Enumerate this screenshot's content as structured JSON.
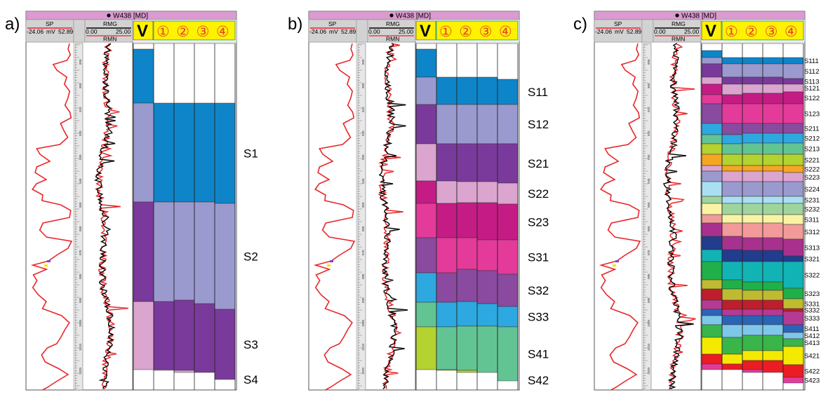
{
  "well": {
    "title": "W438 [MD]",
    "sp": {
      "name": "SP",
      "min": "-24.06",
      "unit": "mV",
      "max": "52.89"
    },
    "rmg": {
      "name": "RMG",
      "min": "0.00",
      "max": "25.00"
    },
    "rmn": {
      "name": "RMN"
    },
    "depth_ticks": [
      "890",
      "900",
      "910",
      "920",
      "930",
      "940",
      "950",
      "960",
      "970",
      "980",
      "990",
      "1000",
      "1010",
      "1020"
    ]
  },
  "columns": {
    "v_label": "V",
    "circled": [
      "①",
      "②",
      "③",
      "④"
    ]
  },
  "panels": [
    {
      "letter": "a)",
      "zones": [
        {
          "label": "S1",
          "color": "#0e85c9",
          "b": [
            70,
            147,
            147,
            147,
            147
          ]
        },
        {
          "label": "S2",
          "color": "#9b9acf",
          "b": [
            147,
            288,
            288,
            288,
            290
          ]
        },
        {
          "label": "S3",
          "color": "#7a3a9b",
          "b": [
            288,
            430,
            428,
            433,
            441
          ]
        },
        {
          "label": "S4",
          "color": "#dba5cf",
          "b": [
            430,
            527,
            528,
            531,
            541
          ]
        }
      ]
    },
    {
      "letter": "b)",
      "zones": [
        {
          "label": "S11",
          "color": "#0e85c9",
          "b": [
            70,
            110,
            110,
            110,
            113
          ]
        },
        {
          "label": "S12",
          "color": "#9b9acf",
          "b": [
            110,
            149,
            149,
            149,
            149
          ]
        },
        {
          "label": "S21",
          "color": "#7a3a9b",
          "b": [
            149,
            205,
            205,
            205,
            205
          ]
        },
        {
          "label": "S22",
          "color": "#dba5cf",
          "b": [
            205,
            258,
            259,
            259,
            261
          ]
        },
        {
          "label": "S23",
          "color": "#c41c84",
          "b": [
            258,
            290,
            289,
            289,
            291
          ]
        },
        {
          "label": "S31",
          "color": "#e43a9a",
          "b": [
            290,
            339,
            339,
            342,
            342
          ]
        },
        {
          "label": "S32",
          "color": "#8a4a9f",
          "b": [
            339,
            389,
            384,
            386,
            391
          ]
        },
        {
          "label": "S33",
          "color": "#2da8e0",
          "b": [
            389,
            431,
            430,
            433,
            437
          ]
        },
        {
          "label": "S41",
          "color": "#63c493",
          "b": [
            431,
            466,
            465,
            465,
            466
          ]
        },
        {
          "label": "S42",
          "color": "#b4d230",
          "b": [
            466,
            527,
            528,
            531,
            543
          ]
        }
      ]
    },
    {
      "letter": "c)",
      "zones": [
        {
          "label": "S111",
          "color": "#0e85c9",
          "b": [
            72,
            82,
            82,
            82,
            82
          ]
        },
        {
          "label": "S112",
          "color": "#9b9acf",
          "b": [
            82,
            91,
            91,
            91,
            91
          ]
        },
        {
          "label": "S113",
          "color": "#7a3a9b",
          "b": [
            91,
            110,
            110,
            110,
            112
          ]
        },
        {
          "label": "S121",
          "color": "#dba5cf",
          "b": [
            110,
            120,
            120,
            120,
            120
          ]
        },
        {
          "label": "S122",
          "color": "#c41c84",
          "b": [
            120,
            135,
            133,
            133,
            131
          ]
        },
        {
          "label": "S123",
          "color": "#e43a9a",
          "b": [
            135,
            148,
            148,
            148,
            148
          ]
        },
        {
          "label": "S211",
          "color": "#8a4a9f",
          "b": [
            148,
            176,
            176,
            176,
            176
          ]
        },
        {
          "label": "S212",
          "color": "#2da8e0",
          "b": [
            176,
            192,
            190,
            190,
            190
          ]
        },
        {
          "label": "S213",
          "color": "#63c493",
          "b": [
            192,
            205,
            204,
            204,
            204
          ]
        },
        {
          "label": "S221",
          "color": "#b4d230",
          "b": [
            205,
            220,
            220,
            220,
            220
          ]
        },
        {
          "label": "S222",
          "color": "#f6a623",
          "b": [
            220,
            236,
            236,
            236,
            236
          ]
        },
        {
          "label": "S223",
          "color": "#dba5cf",
          "b": [
            236,
            244,
            244,
            244,
            246
          ]
        },
        {
          "label": "S224",
          "color": "#9b9acf",
          "b": [
            244,
            259,
            259,
            259,
            259
          ]
        },
        {
          "label": "S231",
          "color": "#a9dff1",
          "b": [
            259,
            280,
            280,
            280,
            280
          ]
        },
        {
          "label": "S232",
          "color": "#9fd59d",
          "b": [
            280,
            290,
            290,
            290,
            290
          ]
        },
        {
          "label": "S311",
          "color": "#faf3a3",
          "b": [
            290,
            306,
            306,
            306,
            306
          ]
        },
        {
          "label": "S312",
          "color": "#f29a9a",
          "b": [
            306,
            318,
            318,
            318,
            320
          ]
        },
        {
          "label": "S313",
          "color": "#a9318e",
          "b": [
            318,
            337,
            339,
            339,
            341
          ]
        },
        {
          "label": "S321",
          "color": "#223c8e",
          "b": [
            337,
            356,
            357,
            357,
            365
          ]
        },
        {
          "label": "S322",
          "color": "#12b3b5",
          "b": [
            356,
            373,
            373,
            373,
            373
          ]
        },
        {
          "label": "S323",
          "color": "#1fb04a",
          "b": [
            373,
            399,
            402,
            402,
            411
          ]
        },
        {
          "label": "S331",
          "color": "#c0ba31",
          "b": [
            399,
            412,
            414,
            414,
            426
          ]
        },
        {
          "label": "S332",
          "color": "#be1e2d",
          "b": [
            412,
            428,
            428,
            428,
            440
          ]
        },
        {
          "label": "S333",
          "color": "#b43a94",
          "b": [
            428,
            441,
            441,
            441,
            444
          ]
        },
        {
          "label": "S411",
          "color": "#2b64b6",
          "b": [
            441,
            450,
            450,
            450,
            463
          ]
        },
        {
          "label": "S412",
          "color": "#7fc7e8",
          "b": [
            450,
            463,
            463,
            463,
            474
          ]
        },
        {
          "label": "S413",
          "color": "#39b54a",
          "b": [
            463,
            481,
            478,
            478,
            483
          ]
        },
        {
          "label": "S421",
          "color": "#f4ea00",
          "b": [
            481,
            505,
            500,
            500,
            494
          ]
        },
        {
          "label": "S422",
          "color": "#ec1c24",
          "b": [
            505,
            519,
            514,
            514,
            520
          ]
        },
        {
          "label": "S423",
          "color": "#e43a9a",
          "b": [
            519,
            527,
            527,
            531,
            538
          ]
        }
      ]
    }
  ]
}
